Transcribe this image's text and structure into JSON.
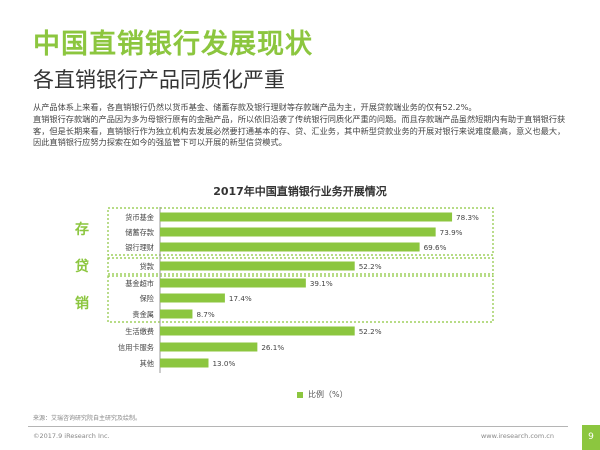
{
  "header": {
    "title": "中国直销银行发展现状",
    "subtitle": "各直销银行产品同质化严重"
  },
  "body_text": {
    "p1": "从产品体系上来看，各直销银行仍然以货币基金、储蓄存款及银行理财等存款端产品为主，开展贷款端业务的仅有52.2%。",
    "p2": "直销银行存款端的产品因为多为母银行原有的金融产品，所以依旧沿袭了传统银行同质化严重的问题。而且存款端产品虽然短期内有助于直销银行获客，但是长期来看，直销银行作为独立机构去发展必然要打通基本的存、贷、汇业务，其中新型贷款业务的开展对银行来说难度最高，意义也最大，因此直销银行应努力探索在如今的强监管下可以开展的新型信贷模式。"
  },
  "side_labels": {
    "deposit": "存",
    "loan": "贷",
    "remit": "销"
  },
  "footer": {
    "source": "来源：艾瑞咨询研究院自主研究及绘制。",
    "copyright": "©2017.9 iResearch Inc.",
    "website": "www.iresearch.com.cn",
    "page": "9"
  },
  "colors": {
    "accent": "#8cc63f",
    "bar": "#8cc63f",
    "text": "#333333"
  },
  "chart_data": {
    "type": "bar",
    "orientation": "horizontal",
    "title": "2017年中国直销银行业务开展情况",
    "categories": [
      "货币基金",
      "储蓄存款",
      "银行理财",
      "贷款",
      "基金超市",
      "保险",
      "贵金属",
      "生活缴费",
      "信用卡服务",
      "其他"
    ],
    "values": [
      78.3,
      73.9,
      69.6,
      52.2,
      39.1,
      17.4,
      8.7,
      52.2,
      26.1,
      13.0
    ],
    "value_labels": [
      "78.3%",
      "73.9%",
      "69.6%",
      "52.2%",
      "39.1%",
      "17.4%",
      "8.7%",
      "52.2%",
      "26.1%",
      "13.0%"
    ],
    "legend": "比例（%）",
    "xlim": [
      0,
      100
    ],
    "groups": [
      {
        "name": "存",
        "categories": [
          "货币基金",
          "储蓄存款",
          "银行理财"
        ]
      },
      {
        "name": "贷",
        "categories": [
          "贷款"
        ]
      },
      {
        "name": "销",
        "categories": [
          "基金超市",
          "保险",
          "贵金属"
        ]
      }
    ]
  }
}
